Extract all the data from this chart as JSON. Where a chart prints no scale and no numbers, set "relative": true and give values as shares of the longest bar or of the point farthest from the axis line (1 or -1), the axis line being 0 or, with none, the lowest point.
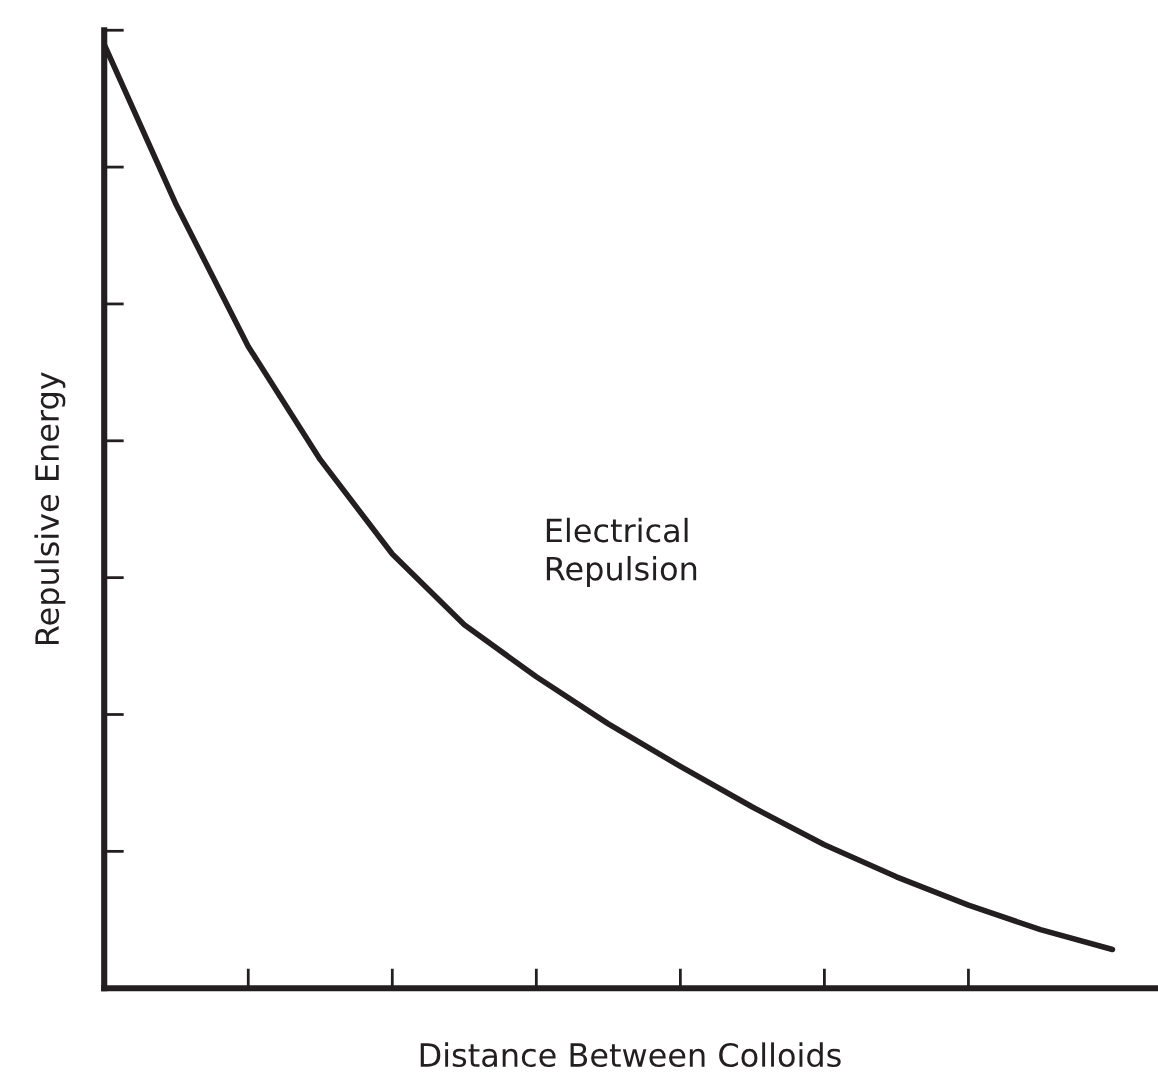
{
  "chart_data": {
    "type": "line",
    "relative": true,
    "xlabel": "Distance Between Colloids",
    "ylabel": "Repulsive Energy",
    "annotations": [
      "Electrical\nRepulsion"
    ],
    "categories": [
      null,
      null,
      null,
      null,
      null,
      null,
      null,
      null,
      null,
      null,
      null,
      null,
      null,
      null,
      null
    ],
    "series": [
      {
        "color": "#231f20",
        "values": [
          1.0,
          0.83,
          0.68,
          0.56,
          0.46,
          0.385,
          0.33,
          0.28,
          0.235,
          0.192,
          0.152,
          0.118,
          0.088,
          0.062,
          0.041
        ]
      }
    ],
    "grid": false,
    "legend": false
  }
}
